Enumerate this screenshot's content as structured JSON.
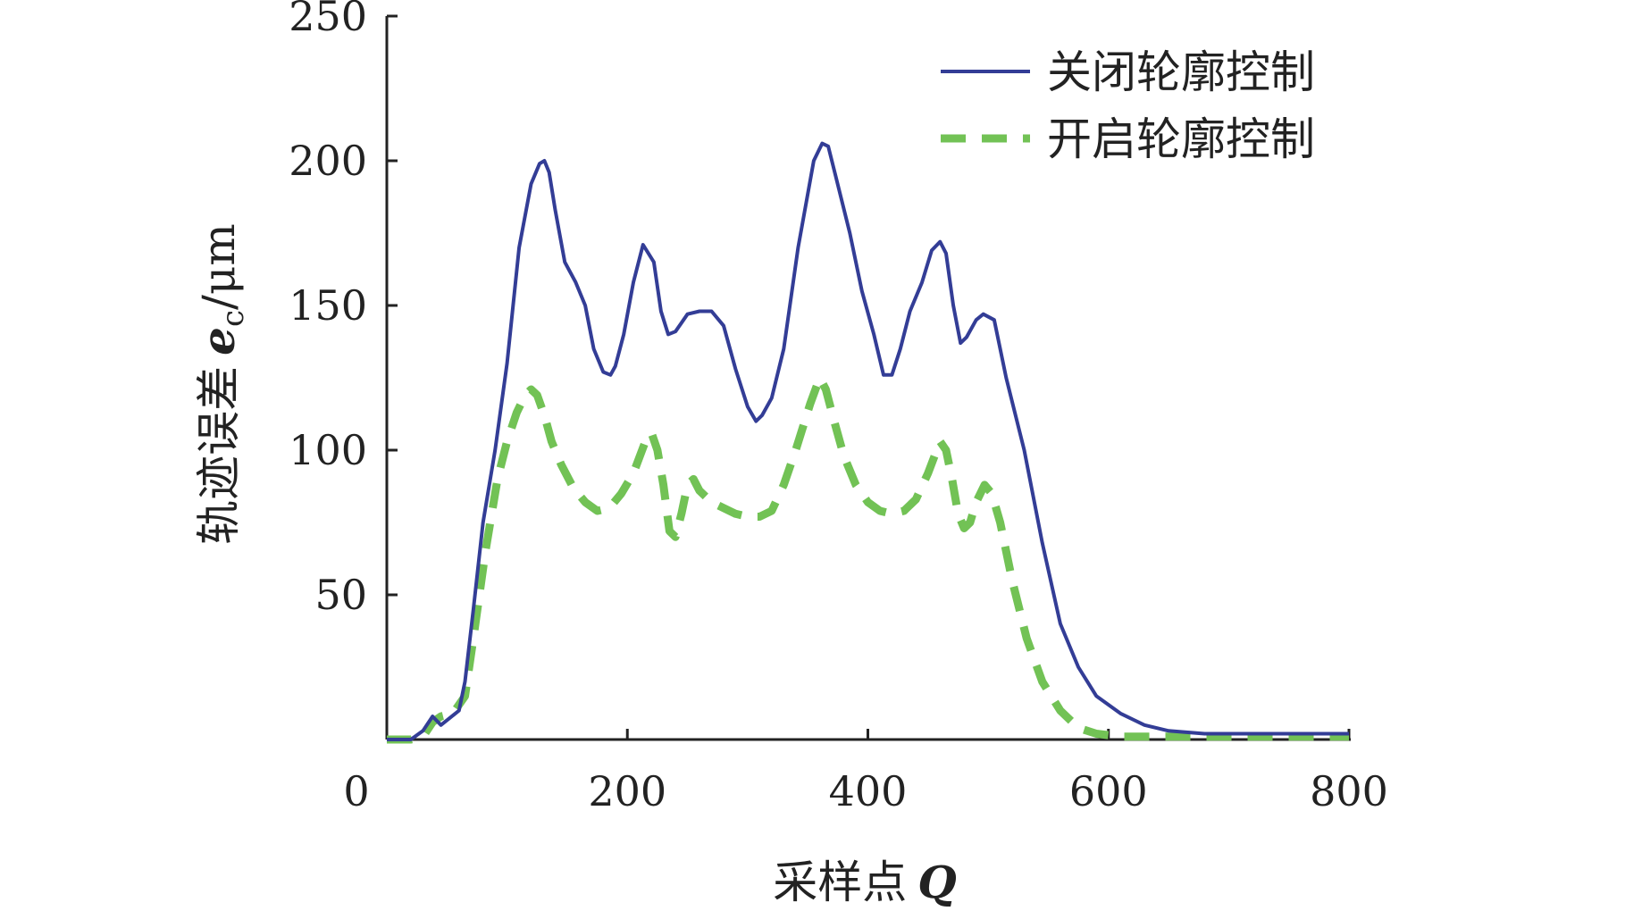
{
  "chart_data": {
    "type": "line",
    "xlabel": "采样点",
    "xlabel_var": "Q",
    "ylabel": "轨迹误差",
    "ylabel_var": "e",
    "ylabel_sub": "c",
    "ylabel_unit": "/μm",
    "xlim": [
      0,
      800
    ],
    "ylim": [
      0,
      250
    ],
    "xticks": [
      0,
      200,
      400,
      600,
      800
    ],
    "yticks": [
      50,
      100,
      150,
      200,
      250
    ],
    "grid": false,
    "legend_position": "top-right",
    "colors": {
      "closed": "#333d96",
      "open": "#72c255",
      "axis": "#222222"
    },
    "series": [
      {
        "name": "关闭轮廓控制",
        "style": "solid",
        "x": [
          0,
          20,
          30,
          38,
          45,
          60,
          65,
          72,
          80,
          90,
          100,
          110,
          120,
          127,
          131,
          135,
          140,
          148,
          157,
          165,
          172,
          180,
          186,
          190,
          197,
          205,
          213,
          222,
          228,
          234,
          240,
          250,
          260,
          270,
          280,
          290,
          300,
          307,
          312,
          320,
          330,
          342,
          355,
          362,
          367,
          373,
          385,
          395,
          405,
          413,
          420,
          427,
          435,
          445,
          453,
          460,
          465,
          471,
          477,
          482,
          490,
          496,
          505,
          515,
          530,
          545,
          560,
          575,
          590,
          610,
          630,
          650,
          680,
          700,
          740,
          780,
          800
        ],
        "y": [
          0,
          0,
          3,
          8,
          5,
          10,
          20,
          45,
          75,
          100,
          130,
          170,
          192,
          199,
          200,
          196,
          183,
          165,
          158,
          150,
          135,
          127,
          126,
          129,
          140,
          158,
          171,
          165,
          148,
          140,
          141,
          147,
          148,
          148,
          143,
          128,
          115,
          110,
          112,
          118,
          135,
          170,
          200,
          206,
          205,
          195,
          175,
          155,
          140,
          126,
          126,
          135,
          148,
          158,
          169,
          172,
          168,
          150,
          137,
          139,
          145,
          147,
          145,
          125,
          100,
          68,
          40,
          25,
          15,
          9,
          5,
          3,
          2,
          2,
          2,
          2,
          2
        ]
      },
      {
        "name": "开启轮廓控制",
        "style": "dashed",
        "x": [
          0,
          20,
          30,
          38,
          45,
          55,
          65,
          72,
          82,
          92,
          100,
          108,
          115,
          120,
          125,
          131,
          137,
          145,
          155,
          165,
          175,
          185,
          195,
          205,
          215,
          220,
          225,
          230,
          235,
          240,
          245,
          250,
          255,
          260,
          270,
          280,
          290,
          300,
          310,
          320,
          330,
          340,
          352,
          360,
          365,
          372,
          380,
          390,
          400,
          410,
          420,
          430,
          440,
          450,
          460,
          465,
          470,
          475,
          480,
          485,
          490,
          497,
          503,
          510,
          520,
          532,
          545,
          560,
          575,
          590,
          610,
          640,
          680,
          720,
          760,
          800
        ],
        "y": [
          0,
          0,
          1,
          6,
          8,
          9,
          15,
          35,
          65,
          90,
          103,
          113,
          119,
          121,
          119,
          112,
          103,
          95,
          87,
          82,
          79,
          80,
          85,
          92,
          103,
          106,
          100,
          88,
          72,
          70,
          78,
          88,
          90,
          86,
          82,
          80,
          78,
          77,
          77,
          79,
          88,
          100,
          116,
          125,
          121,
          110,
          98,
          88,
          82,
          79,
          78,
          79,
          83,
          92,
          103,
          100,
          90,
          78,
          73,
          75,
          82,
          88,
          85,
          75,
          55,
          35,
          20,
          10,
          4,
          2,
          1,
          1,
          1,
          1,
          1,
          1
        ]
      }
    ]
  }
}
